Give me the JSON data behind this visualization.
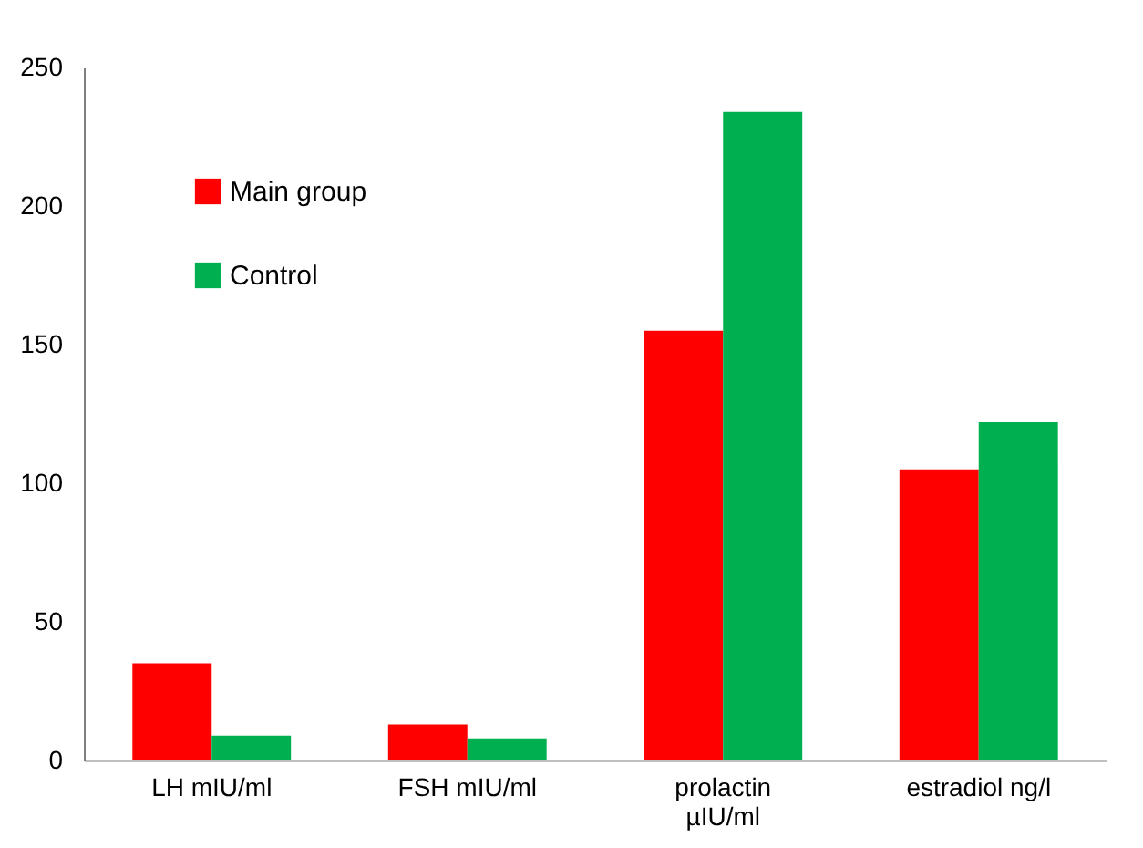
{
  "chart_data": {
    "type": "bar",
    "categories": [
      "LH mIU/ml",
      "FSH mIU/ml",
      "prolactin µIU/ml",
      "estradiol ng/l"
    ],
    "series": [
      {
        "name": "Main group",
        "color": "#ff0000",
        "values": [
          35,
          13,
          155,
          105
        ]
      },
      {
        "name": "Control",
        "color": "#00b050",
        "values": [
          9,
          8,
          234,
          122
        ]
      }
    ],
    "ylim": [
      0,
      250
    ],
    "yticks": [
      0,
      50,
      100,
      150,
      200,
      250
    ],
    "grid": false,
    "legend": "top left"
  }
}
